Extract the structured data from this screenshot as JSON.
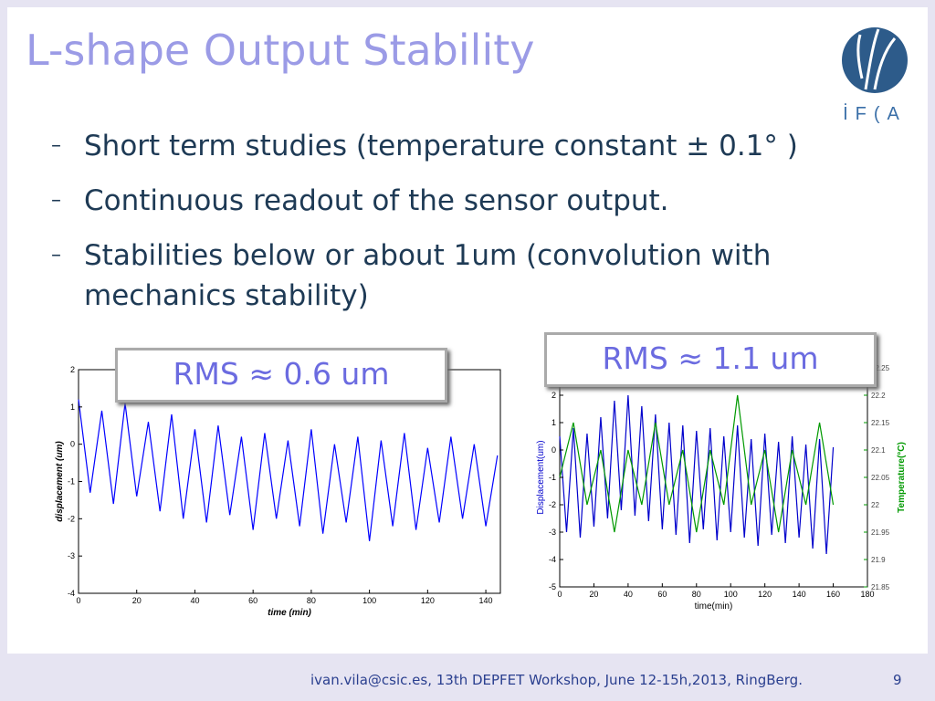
{
  "title": "L-shape Output Stability",
  "logo_text": "İF(A",
  "bullets": [
    "Short term studies (temperature constant ± 0.1° )",
    "Continuous readout of the sensor output.",
    "Stabilities  below or about 1um (convolution with mechanics stability)"
  ],
  "callouts": [
    "RMS  ≈ 0.6 um",
    "RMS  ≈ 1.1 um"
  ],
  "footer": "ivan.vila@csic.es, 13th DEPFET Workshop, June 12-15h,2013, RingBerg.",
  "page_number": "9",
  "chart_data": [
    {
      "type": "line",
      "xlabel": "time (min)",
      "ylabel": "displacement (um)",
      "xlim": [
        0,
        145
      ],
      "xticks": [
        0,
        20,
        40,
        60,
        80,
        100,
        120,
        140
      ],
      "ylim": [
        -4,
        2
      ],
      "yticks": [
        -4,
        -3,
        -2,
        -1,
        0,
        1,
        2
      ],
      "series": [
        {
          "name": "displacement",
          "color": "#0000ff",
          "x": [
            0,
            4,
            8,
            12,
            16,
            20,
            24,
            28,
            32,
            36,
            40,
            44,
            48,
            52,
            56,
            60,
            64,
            68,
            72,
            76,
            80,
            84,
            88,
            92,
            96,
            100,
            104,
            108,
            112,
            116,
            120,
            124,
            128,
            132,
            136,
            140,
            144
          ],
          "values": [
            1.2,
            -1.3,
            0.9,
            -1.6,
            1.1,
            -1.4,
            0.6,
            -1.8,
            0.8,
            -2.0,
            0.4,
            -2.1,
            0.5,
            -1.9,
            0.2,
            -2.3,
            0.3,
            -2.0,
            0.1,
            -2.2,
            0.4,
            -2.4,
            0.0,
            -2.1,
            0.2,
            -2.6,
            0.1,
            -2.2,
            0.3,
            -2.3,
            -0.1,
            -2.1,
            0.2,
            -2.0,
            0.0,
            -2.2,
            -0.3
          ]
        }
      ]
    },
    {
      "type": "line",
      "xlabel": "time(min)",
      "ylabel": "Displacement(um)",
      "y2label": "Temperature(°C)",
      "xlim": [
        0,
        180
      ],
      "xticks": [
        0,
        20,
        40,
        60,
        80,
        100,
        120,
        140,
        160,
        180
      ],
      "ylim": [
        -5,
        3
      ],
      "yticks": [
        -5,
        -4,
        -3,
        -2,
        -1,
        0,
        1,
        2
      ],
      "y2lim": [
        21.85,
        22.25
      ],
      "y2ticks": [
        21.85,
        21.9,
        21.95,
        22,
        22.05,
        22.1,
        22.15,
        22.2,
        22.25
      ],
      "series": [
        {
          "name": "Displacement",
          "color": "#0000cc",
          "x": [
            0,
            4,
            8,
            12,
            16,
            20,
            24,
            28,
            32,
            36,
            40,
            44,
            48,
            52,
            56,
            60,
            64,
            68,
            72,
            76,
            80,
            84,
            88,
            92,
            96,
            100,
            104,
            108,
            112,
            116,
            120,
            124,
            128,
            132,
            136,
            140,
            144,
            148,
            152,
            156,
            160
          ],
          "values": [
            0.5,
            -3,
            0.8,
            -3.2,
            0.6,
            -2.8,
            1.2,
            -2.5,
            1.8,
            -2.2,
            2.0,
            -2.4,
            1.6,
            -2.6,
            1.3,
            -2.9,
            1.0,
            -3.1,
            0.9,
            -3.4,
            0.7,
            -2.9,
            0.8,
            -3.3,
            0.5,
            -3.0,
            0.9,
            -3.2,
            0.4,
            -3.5,
            0.6,
            -3.1,
            0.3,
            -3.4,
            0.5,
            -3.2,
            0.2,
            -3.6,
            0.4,
            -3.8,
            0.1
          ]
        },
        {
          "name": "Temperature",
          "color": "#009900",
          "axis": "y2",
          "x": [
            0,
            8,
            16,
            24,
            32,
            40,
            48,
            56,
            64,
            72,
            80,
            88,
            96,
            104,
            112,
            120,
            128,
            136,
            144,
            152,
            160
          ],
          "values": [
            22.05,
            22.15,
            22,
            22.1,
            21.95,
            22.1,
            22,
            22.15,
            22,
            22.1,
            21.95,
            22.1,
            22,
            22.2,
            22,
            22.1,
            21.95,
            22.1,
            22,
            22.15,
            22
          ]
        }
      ]
    }
  ]
}
